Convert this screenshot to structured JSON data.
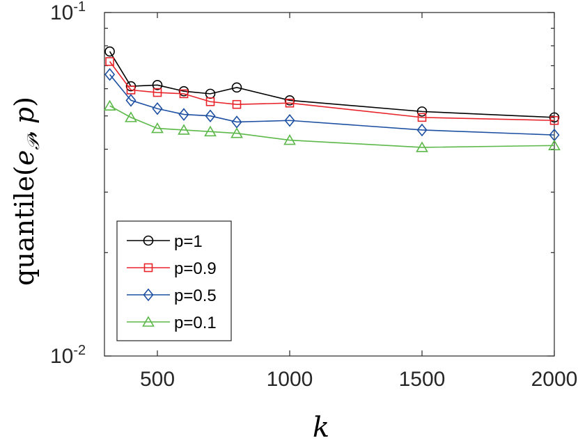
{
  "chart_data": {
    "type": "line",
    "xlabel": "k",
    "ylabel": {
      "fn": "quantile",
      "open": "(",
      "var": "e",
      "sub": "𝒫",
      "sep": ",",
      "p": "p",
      "close": ")"
    },
    "xlim": [
      300,
      2000
    ],
    "ylim": [
      0.01,
      0.1
    ],
    "yscale": "log",
    "x_ticks": [
      "500",
      "1000",
      "1500",
      "2000"
    ],
    "y_ticks": [
      {
        "base": "10",
        "exp": "-2"
      },
      {
        "base": "10",
        "exp": "-1"
      }
    ],
    "grid": false,
    "legend_position": "bottom-left",
    "x": [
      320,
      400,
      500,
      600,
      700,
      800,
      1000,
      1500,
      2000
    ],
    "series": [
      {
        "name": "p=1",
        "color": "#000000",
        "marker": "circle",
        "values": [
          0.077,
          0.061,
          0.0615,
          0.059,
          0.058,
          0.0605,
          0.0555,
          0.0515,
          0.0495
        ]
      },
      {
        "name": "p=0.9",
        "color": "#e8242a",
        "marker": "square",
        "values": [
          0.072,
          0.0595,
          0.0585,
          0.058,
          0.055,
          0.054,
          0.0545,
          0.0495,
          0.0485
        ]
      },
      {
        "name": "p=0.5",
        "color": "#1c4fa1",
        "marker": "diamond",
        "values": [
          0.066,
          0.0555,
          0.0525,
          0.0505,
          0.05,
          0.048,
          0.0485,
          0.0455,
          0.044
        ]
      },
      {
        "name": "p=0.1",
        "color": "#5cb849",
        "marker": "triangle",
        "values": [
          0.0535,
          0.0495,
          0.046,
          0.0455,
          0.045,
          0.0445,
          0.0425,
          0.0405,
          0.041
        ]
      }
    ]
  }
}
